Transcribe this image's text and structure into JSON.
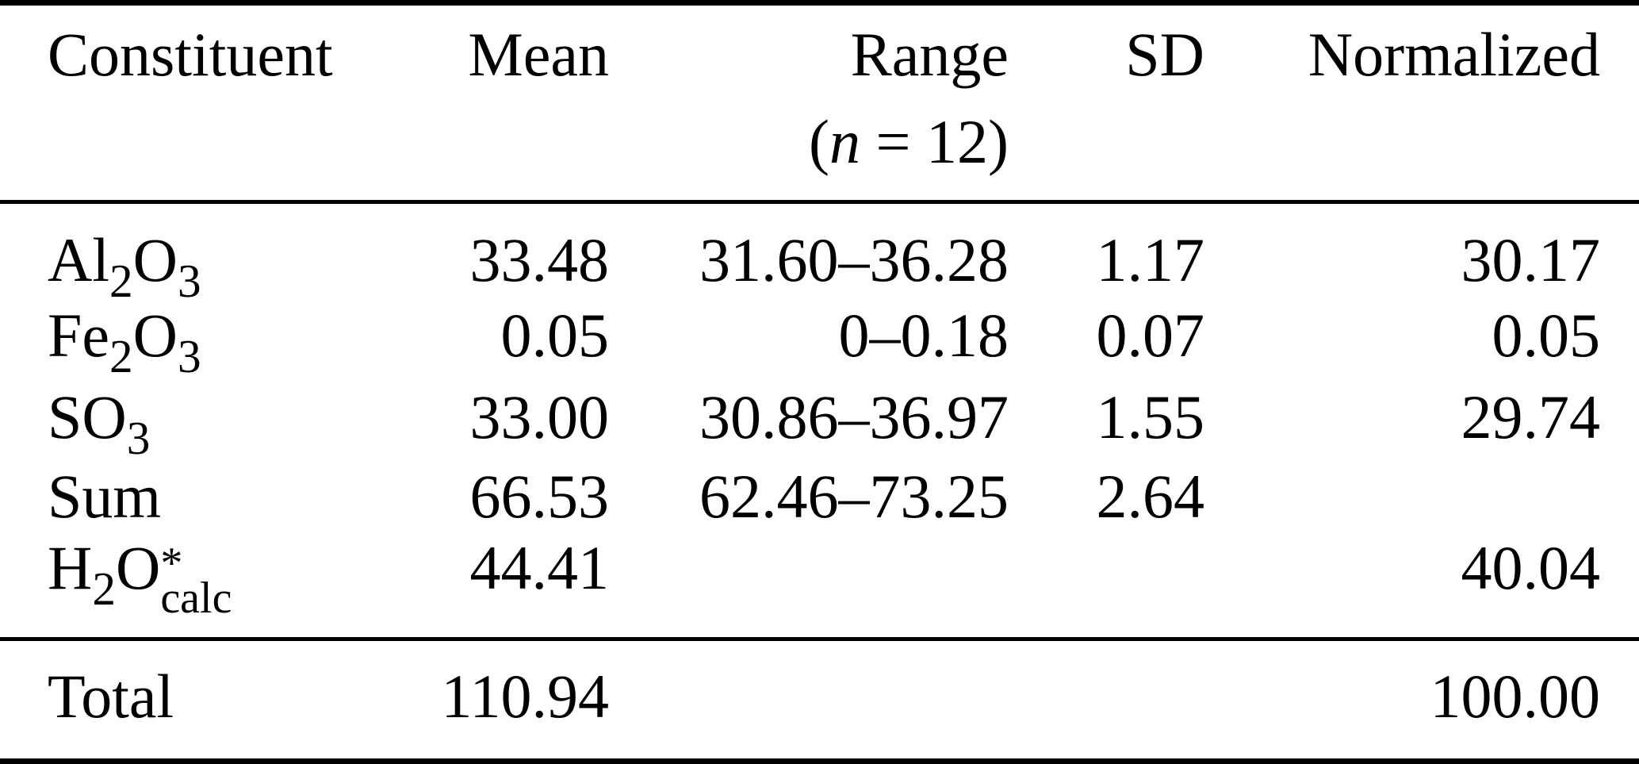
{
  "table": {
    "header": {
      "constituent": "Constituent",
      "mean": "Mean",
      "range": "Range",
      "range_note": {
        "open": "(",
        "var": "n",
        "rest": " = 12)"
      },
      "sd": "SD",
      "normalized": "Normalized"
    },
    "rows": [
      {
        "formula": {
          "p1": "Al",
          "s1": "2",
          "p2": "O",
          "s2": "3"
        },
        "mean": "33.48",
        "range": "31.60–36.28",
        "sd": "1.17",
        "normalized": "30.17"
      },
      {
        "formula": {
          "p1": "Fe",
          "s1": "2",
          "p2": "O",
          "s2": "3"
        },
        "mean": "0.05",
        "range": "0–0.18",
        "sd": "0.07",
        "normalized": "0.05"
      },
      {
        "formula": {
          "p1": "SO",
          "s1": "3"
        },
        "mean": "33.00",
        "range": "30.86–36.97",
        "sd": "1.55",
        "normalized": "29.74"
      },
      {
        "label": "Sum",
        "mean": "66.53",
        "range": "62.46–73.25",
        "sd": "2.64",
        "normalized": ""
      },
      {
        "formula": {
          "p1": "H",
          "s1": "2",
          "p2": "O",
          "sup": "*",
          "sub": "calc"
        },
        "mean": "44.41",
        "range": "",
        "sd": "",
        "normalized": "40.04"
      }
    ],
    "footer": {
      "label": "Total",
      "mean": "110.94",
      "range": "",
      "sd": "",
      "normalized": "100.00"
    }
  },
  "colors": {
    "text": "#000000",
    "background": "#ffffff",
    "rule": "#000000"
  }
}
